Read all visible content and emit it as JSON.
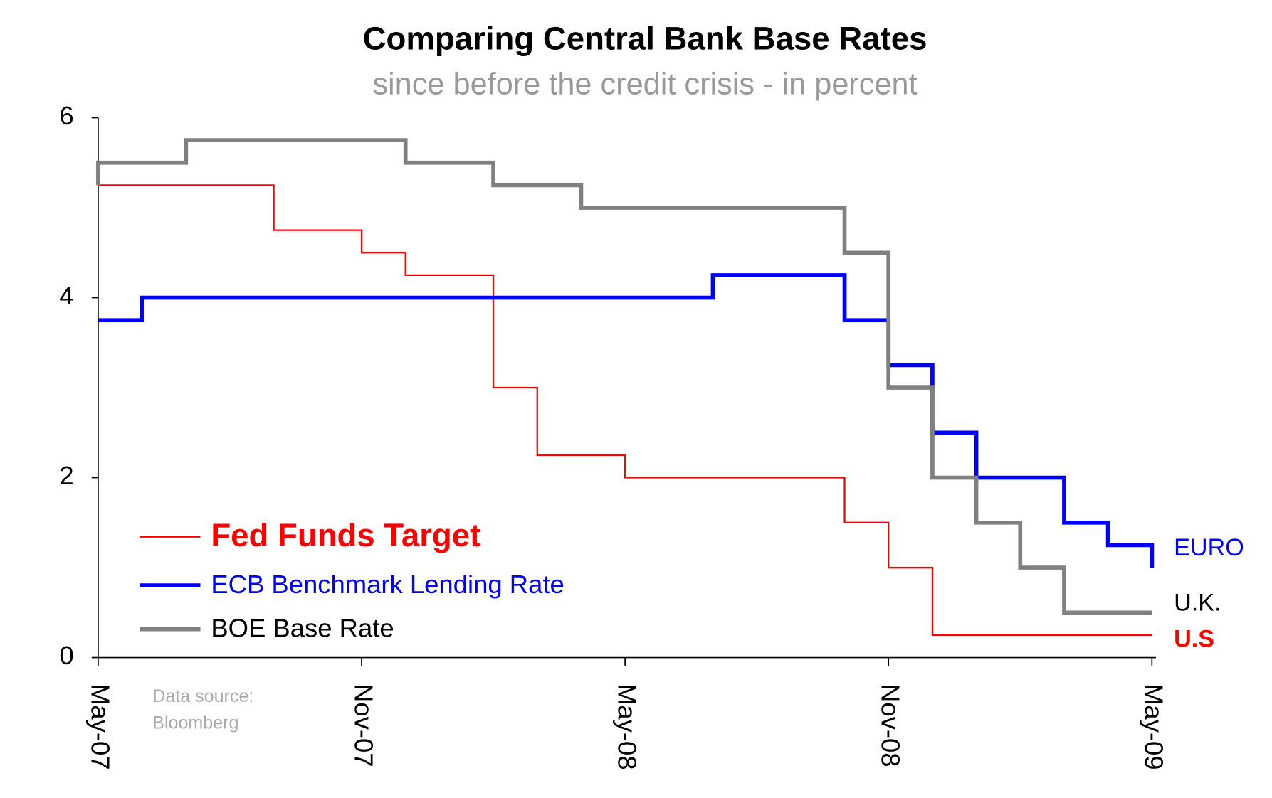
{
  "chart_data": {
    "type": "line",
    "title": "Comparing Central Bank Base Rates",
    "subtitle": "since before the credit crisis - in percent",
    "annotation": [
      "Data source:",
      "Bloomberg"
    ],
    "xlim": [
      "2007-05",
      "2009-05"
    ],
    "xticks": [
      {
        "value": "2007-05",
        "label": "May-07"
      },
      {
        "value": "2007-11",
        "label": "Nov-07"
      },
      {
        "value": "2008-05",
        "label": "May-08"
      },
      {
        "value": "2008-11",
        "label": "Nov-08"
      },
      {
        "value": "2009-05",
        "label": "May-09"
      }
    ],
    "ylim": [
      0,
      6
    ],
    "yticks": [
      0,
      2,
      4,
      6
    ],
    "series": [
      {
        "name": "Fed Funds Target",
        "end_label": "U.S",
        "color": "#ff0000",
        "x": [
          "2007-05",
          "2007-09",
          "2007-09",
          "2007-11",
          "2007-11",
          "2007-12",
          "2007-12",
          "2008-02",
          "2008-02",
          "2008-03",
          "2008-03",
          "2008-05",
          "2008-05",
          "2008-10",
          "2008-10",
          "2008-11",
          "2008-11",
          "2008-12",
          "2008-12",
          "2009-05"
        ],
        "values": [
          5.25,
          5.25,
          4.75,
          4.75,
          4.5,
          4.5,
          4.25,
          4.25,
          3.0,
          3.0,
          2.25,
          2.25,
          2.0,
          2.0,
          1.5,
          1.5,
          1.0,
          1.0,
          0.25,
          0.25
        ]
      },
      {
        "name": "ECB Benchmark Lending Rate",
        "end_label": "EURO",
        "color": "#0000ff",
        "x": [
          "2007-05",
          "2007-06",
          "2007-06",
          "2008-07",
          "2008-07",
          "2008-10",
          "2008-10",
          "2008-11",
          "2008-11",
          "2008-12",
          "2008-12",
          "2009-01",
          "2009-01",
          "2009-03",
          "2009-03",
          "2009-04",
          "2009-04",
          "2009-05",
          "2009-05"
        ],
        "values": [
          3.75,
          3.75,
          4.0,
          4.0,
          4.25,
          4.25,
          3.75,
          3.75,
          3.25,
          3.25,
          2.5,
          2.5,
          2.0,
          2.0,
          1.5,
          1.5,
          1.25,
          1.25,
          1.0
        ]
      },
      {
        "name": "BOE Base Rate",
        "end_label": "U.K.",
        "color": "#808080",
        "x": [
          "2007-05",
          "2007-05",
          "2007-07",
          "2007-07",
          "2007-12",
          "2007-12",
          "2008-02",
          "2008-02",
          "2008-04",
          "2008-04",
          "2008-10",
          "2008-10",
          "2008-11",
          "2008-11",
          "2008-12",
          "2008-12",
          "2009-01",
          "2009-01",
          "2009-02",
          "2009-02",
          "2009-03",
          "2009-03",
          "2009-05"
        ],
        "values": [
          5.25,
          5.5,
          5.5,
          5.75,
          5.75,
          5.5,
          5.5,
          5.25,
          5.25,
          5.0,
          5.0,
          4.5,
          4.5,
          3.0,
          3.0,
          2.0,
          2.0,
          1.5,
          1.5,
          1.0,
          1.0,
          0.5,
          0.5
        ]
      }
    ]
  }
}
